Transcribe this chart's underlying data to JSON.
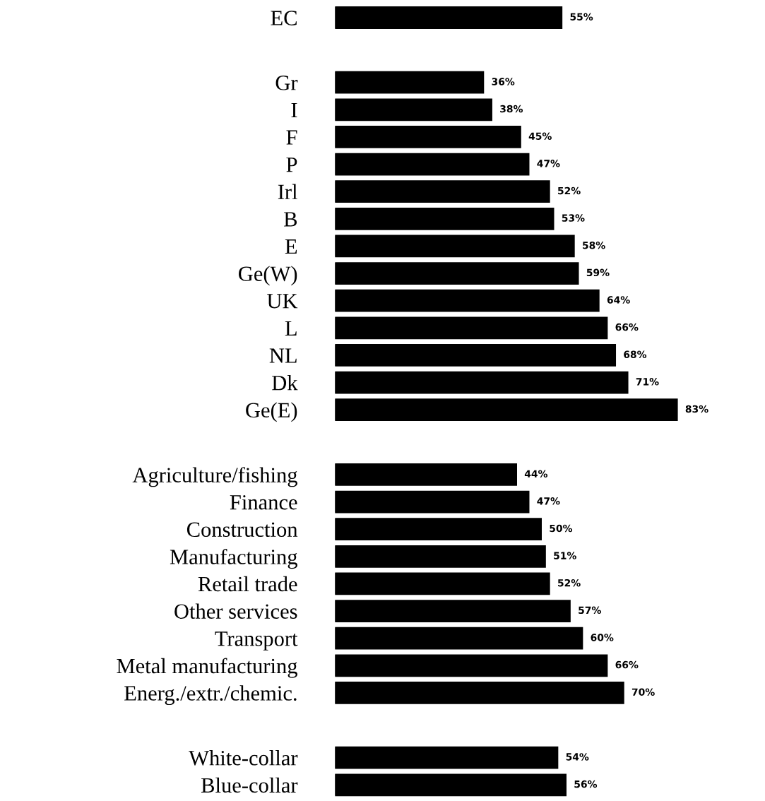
{
  "chart_data": [
    {
      "type": "bar",
      "orientation": "horizontal",
      "tick_labels": "y",
      "grid": false,
      "legend": false,
      "categories": [
        "EC"
      ],
      "values": [
        55
      ],
      "color": "#000000",
      "value_labels": [
        "55%"
      ]
    },
    {
      "type": "bar",
      "orientation": "horizontal",
      "tick_labels": "y",
      "grid": false,
      "legend": false,
      "categories": [
        "Gr",
        "I",
        "F",
        "P",
        "Irl",
        "B",
        "E",
        "Ge(W)",
        "UK",
        "L",
        "NL",
        "Dk",
        "Ge(E)"
      ],
      "values": [
        36,
        38,
        45,
        47,
        52,
        53,
        58,
        59,
        64,
        66,
        68,
        71,
        83
      ],
      "color": "#000000",
      "value_labels": [
        "36%",
        "38%",
        "45%",
        "47%",
        "52%",
        "53%",
        "58%",
        "59%",
        "64%",
        "66%",
        "68%",
        "71%",
        "83%"
      ]
    },
    {
      "type": "bar",
      "orientation": "horizontal",
      "tick_labels": "y",
      "grid": false,
      "legend": false,
      "categories": [
        "Agriculture/fishing",
        "Finance",
        "Construction",
        "Manufacturing",
        "Retail trade",
        "Other services",
        "Transport",
        "Metal manufacturing",
        "Energ./extr./chemic."
      ],
      "values": [
        44,
        47,
        50,
        51,
        52,
        57,
        60,
        66,
        70
      ],
      "color": "#000000",
      "value_labels": [
        "44%",
        "47%",
        "50%",
        "51%",
        "52%",
        "57%",
        "60%",
        "66%",
        "70%"
      ]
    },
    {
      "type": "bar",
      "orientation": "horizontal",
      "tick_labels": "y",
      "grid": false,
      "legend": false,
      "categories": [
        "White-collar",
        "Blue-collar"
      ],
      "values": [
        54,
        56
      ],
      "color": "#000000",
      "value_labels": [
        "54%",
        "56%"
      ]
    }
  ]
}
